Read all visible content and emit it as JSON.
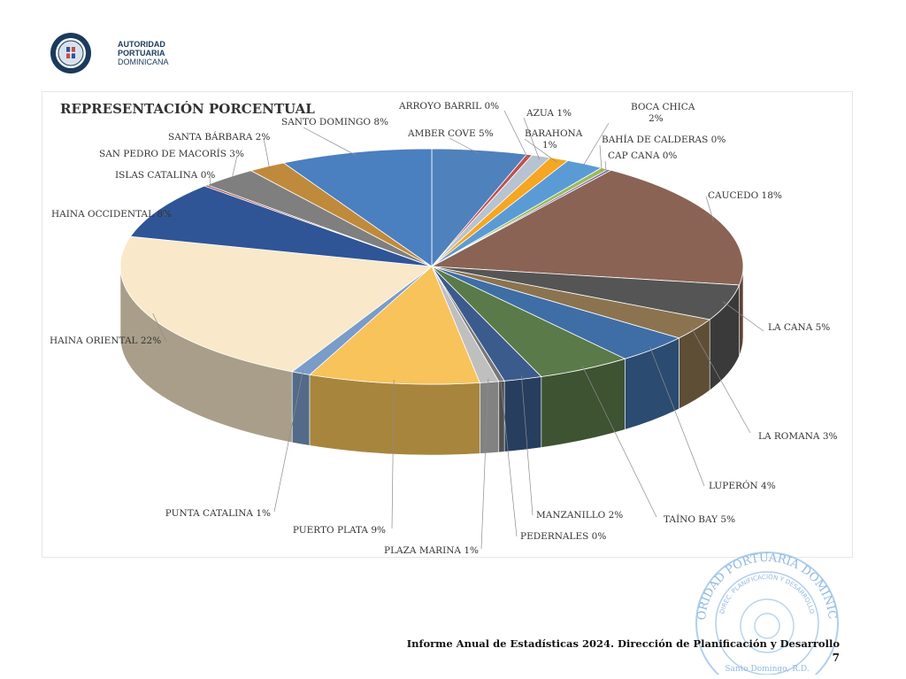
{
  "logo": {
    "line1": "AUTORIDAD",
    "line2": "PORTUARIA",
    "line3": "DOMINICANA"
  },
  "chart_data": {
    "type": "pie",
    "title": "REPRESENTACIÓN PORCENTUAL",
    "slices": [
      {
        "label": "AMBER COVE 5%",
        "value": 5,
        "color": "#4f81bd"
      },
      {
        "label": "ARROYO BARRIL 0%",
        "value": 0.3,
        "color": "#c0504d"
      },
      {
        "label": "AZUA 1%",
        "value": 1,
        "color": "#b7c3d0"
      },
      {
        "label": "BARAHONA\n1%",
        "value": 1,
        "color": "#f5a623"
      },
      {
        "label": "BOCA CHICA\n2%",
        "value": 2,
        "color": "#5b9bd5"
      },
      {
        "label": "BAHÍA DE CALDERAS 0%",
        "value": 0.4,
        "color": "#9bbb59"
      },
      {
        "label": "CAP CANA 0%",
        "value": 0.2,
        "color": "#8064a2"
      },
      {
        "label": "CAUCEDO 18%",
        "value": 18,
        "color": "#8a6354"
      },
      {
        "label": "LA CANA 5%",
        "value": 5,
        "color": "#555555"
      },
      {
        "label": "LA ROMANA 3%",
        "value": 3,
        "color": "#8c7350"
      },
      {
        "label": "LUPERÓN  4%",
        "value": 4,
        "color": "#3f6ea6"
      },
      {
        "label": "TAÍNO BAY 5%",
        "value": 5,
        "color": "#5a7a4a"
      },
      {
        "label": "MANZANILLO 2%",
        "value": 2,
        "color": "#3b5b8c"
      },
      {
        "label": "PEDERNALES 0%",
        "value": 0.3,
        "color": "#777777"
      },
      {
        "label": "PLAZA MARINA 1%",
        "value": 1,
        "color": "#bfbfbf"
      },
      {
        "label": "PUERTO PLATA 9%",
        "value": 9,
        "color": "#f7c35a"
      },
      {
        "label": "PUNTA CATALINA 1%",
        "value": 1,
        "color": "#7a9cc9"
      },
      {
        "label": "HAINA ORIENTAL 22%",
        "value": 22,
        "color": "#f9e8c9"
      },
      {
        "label": "HAINA OCCIDENTAL 8%",
        "value": 8,
        "color": "#2f5597"
      },
      {
        "label": "ISLAS CATALINA 0%",
        "value": 0.2,
        "color": "#a04a48"
      },
      {
        "label": "SAN PEDRO DE MACORÍS 3%",
        "value": 3,
        "color": "#7f7f7f"
      },
      {
        "label": "SANTA BÁRBARA 2%",
        "value": 2,
        "color": "#c08a3c"
      },
      {
        "label": "SANTO DOMINGO 8%",
        "value": 8,
        "color": "#4a7fc0"
      }
    ]
  },
  "footer": {
    "text": "Informe Anual de Estadísticas 2024. Dirección de Planificación y Desarrollo",
    "page": "7"
  },
  "stamp": {
    "top_text": "AUTORIDAD PORTUARIA DOMINICANA",
    "middle_text": "DIREC. PLANIFICACIÓN Y DESARROLLO",
    "bottom_text": "Santo Domingo, R.D."
  }
}
